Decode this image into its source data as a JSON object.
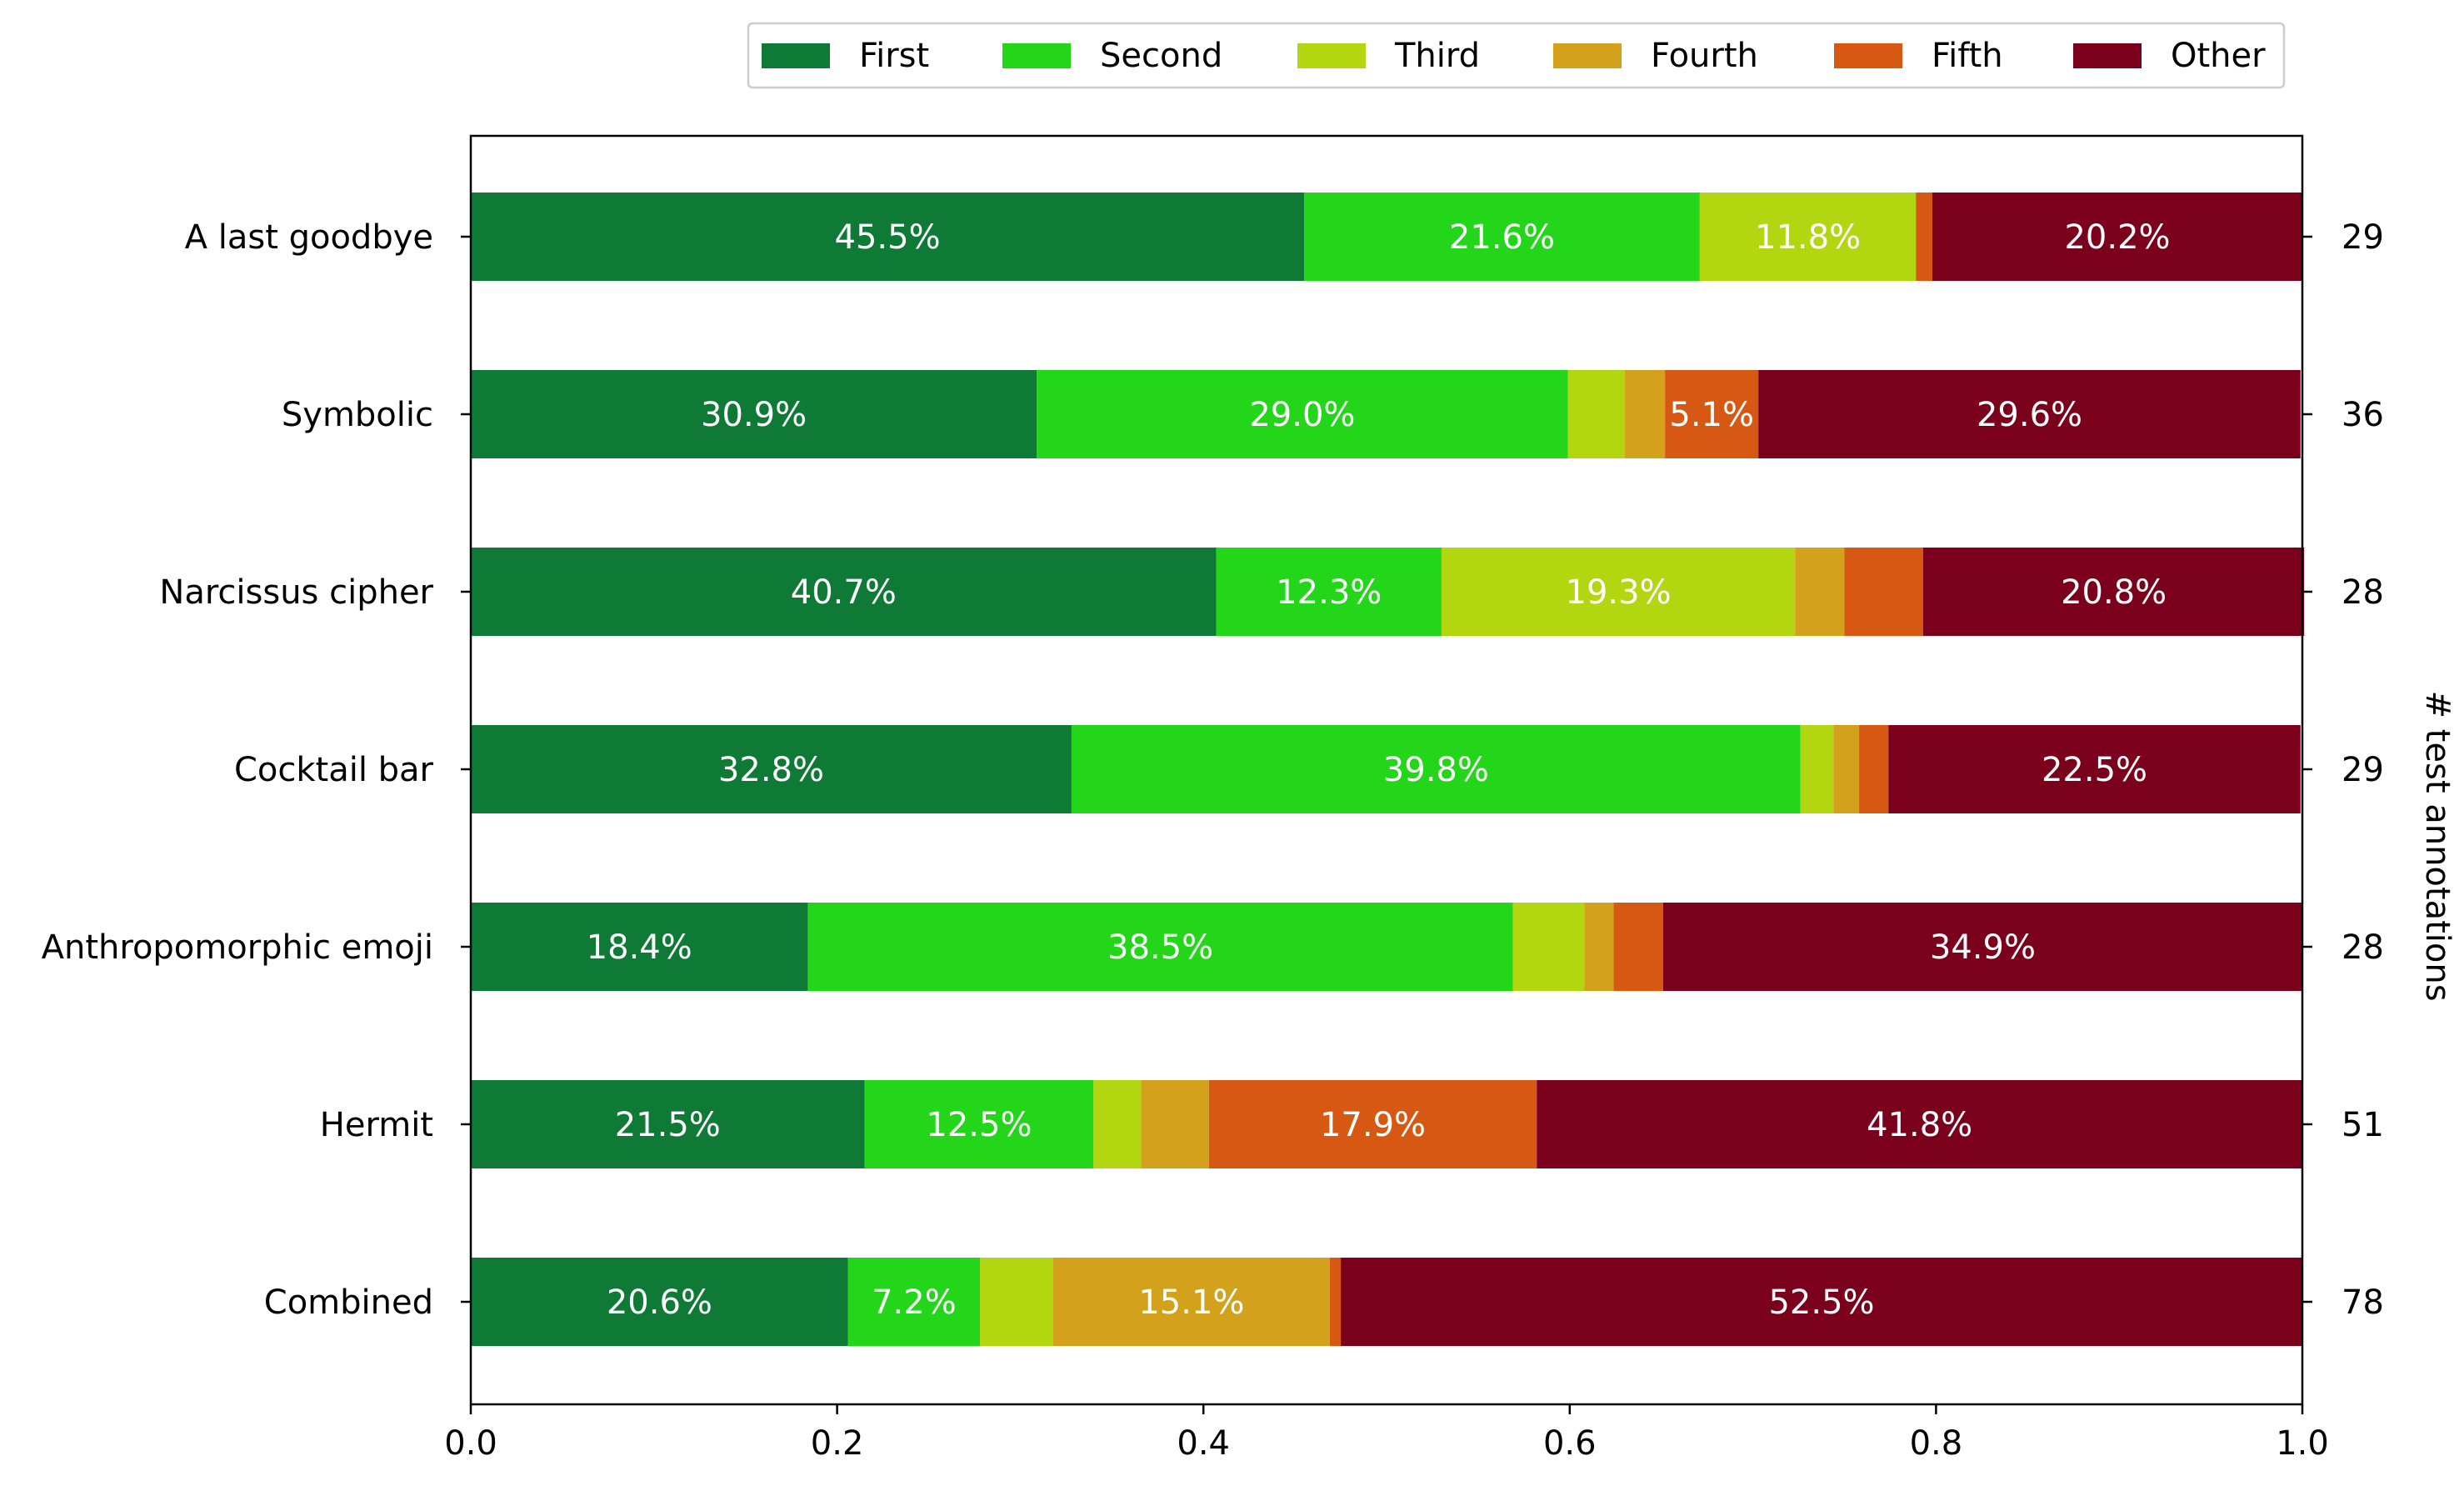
{
  "chart_data": {
    "type": "bar",
    "orientation": "horizontal",
    "stacked": true,
    "categories": [
      "A last goodbye",
      "Symbolic",
      "Narcissus cipher",
      "Cocktail bar",
      "Anthropomorphic emoji",
      "Hermit",
      "Combined"
    ],
    "series": [
      {
        "name": "First",
        "color": "#0e7a35",
        "values": [
          0.455,
          0.309,
          0.407,
          0.328,
          0.184,
          0.215,
          0.206
        ]
      },
      {
        "name": "Second",
        "color": "#23d61a",
        "values": [
          0.216,
          0.29,
          0.123,
          0.398,
          0.385,
          0.125,
          0.072
        ]
      },
      {
        "name": "Third",
        "color": "#b2d610",
        "values": [
          0.118,
          0.031,
          0.193,
          0.018,
          0.039,
          0.026,
          0.04
        ]
      },
      {
        "name": "Fourth",
        "color": "#d4a11c",
        "values": [
          0.0,
          0.022,
          0.027,
          0.014,
          0.016,
          0.037,
          0.151
        ]
      },
      {
        "name": "Fifth",
        "color": "#d65812",
        "values": [
          0.009,
          0.051,
          0.043,
          0.016,
          0.027,
          0.179,
          0.006
        ]
      },
      {
        "name": "Other",
        "color": "#7a001c",
        "values": [
          0.202,
          0.296,
          0.208,
          0.225,
          0.349,
          0.418,
          0.525
        ]
      }
    ],
    "bar_labels": [
      [
        "45.5%",
        "21.6%",
        "11.8%",
        "",
        "",
        "20.2%"
      ],
      [
        "30.9%",
        "29.0%",
        "",
        "",
        "5.1%",
        "29.6%"
      ],
      [
        "40.7%",
        "12.3%",
        "19.3%",
        "",
        "",
        "20.8%"
      ],
      [
        "32.8%",
        "39.8%",
        "",
        "",
        "",
        "22.5%"
      ],
      [
        "18.4%",
        "38.5%",
        "",
        "",
        "",
        "34.9%"
      ],
      [
        "21.5%",
        "12.5%",
        "",
        "",
        "17.9%",
        "41.8%"
      ],
      [
        "20.6%",
        "7.2%",
        "",
        "15.1%",
        "",
        "52.5%"
      ]
    ],
    "xlim": [
      0.0,
      1.0
    ],
    "xticks": [
      "0.0",
      "0.2",
      "0.4",
      "0.6",
      "0.8",
      "1.0"
    ],
    "right_counts": [
      "29",
      "36",
      "28",
      "29",
      "28",
      "51",
      "78"
    ],
    "right_axis_label": "# test annotations",
    "legend_placement": "top-right, above plot",
    "grid": false
  }
}
